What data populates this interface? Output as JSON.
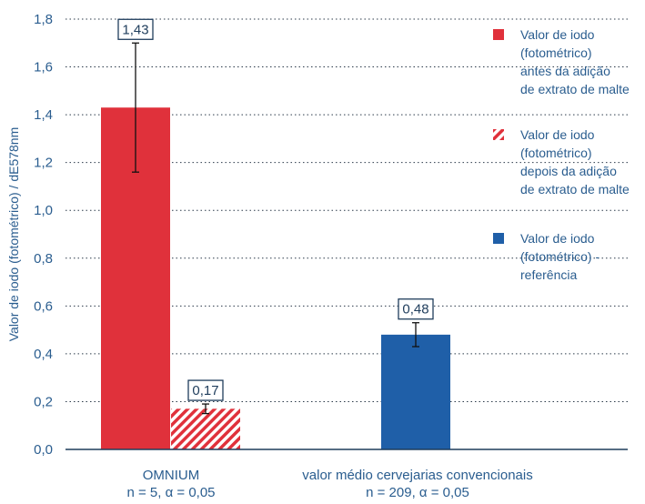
{
  "chart_data": {
    "type": "bar",
    "ylabel": "Valor de iodo (fotométrico) / dE578nm",
    "ylim": [
      0,
      1.8
    ],
    "yticks": [
      "0,0",
      "0,2",
      "0,4",
      "0,6",
      "0,8",
      "1,0",
      "1,2",
      "1,4",
      "1,6",
      "1,8"
    ],
    "grid": "horizontal dotted",
    "legend_position": "right",
    "categories": [
      {
        "label_line1": "OMNIUM",
        "label_line2": "n = 5, α = 0,05"
      },
      {
        "label_line1": "valor médio cervejarias convencionais",
        "label_line2": "n = 209, α = 0,05"
      }
    ],
    "series": [
      {
        "legend": [
          "Valor de iodo",
          "(fotométrico)",
          "antes da adição",
          "de extrato de malte"
        ],
        "color": "#e0313b",
        "pattern": "solid",
        "values": [
          1.43,
          null
        ],
        "labels": [
          "1,43",
          null
        ],
        "error_low": [
          1.16,
          null
        ],
        "error_high": [
          1.7,
          null
        ]
      },
      {
        "legend": [
          "Valor de iodo",
          "(fotométrico)",
          "depois da adição",
          "de extrato de malte"
        ],
        "color": "#e0313b",
        "pattern": "hatched",
        "values": [
          0.17,
          null
        ],
        "labels": [
          "0,17",
          null
        ],
        "error_low": [
          0.15,
          null
        ],
        "error_high": [
          0.19,
          null
        ]
      },
      {
        "legend": [
          "Valor de iodo",
          "(fotométrico) -",
          "referência"
        ],
        "color": "#1f5fa8",
        "pattern": "solid",
        "values": [
          null,
          0.48
        ],
        "labels": [
          null,
          "0,48"
        ],
        "error_low": [
          null,
          0.43
        ],
        "error_high": [
          null,
          0.53
        ]
      }
    ]
  }
}
